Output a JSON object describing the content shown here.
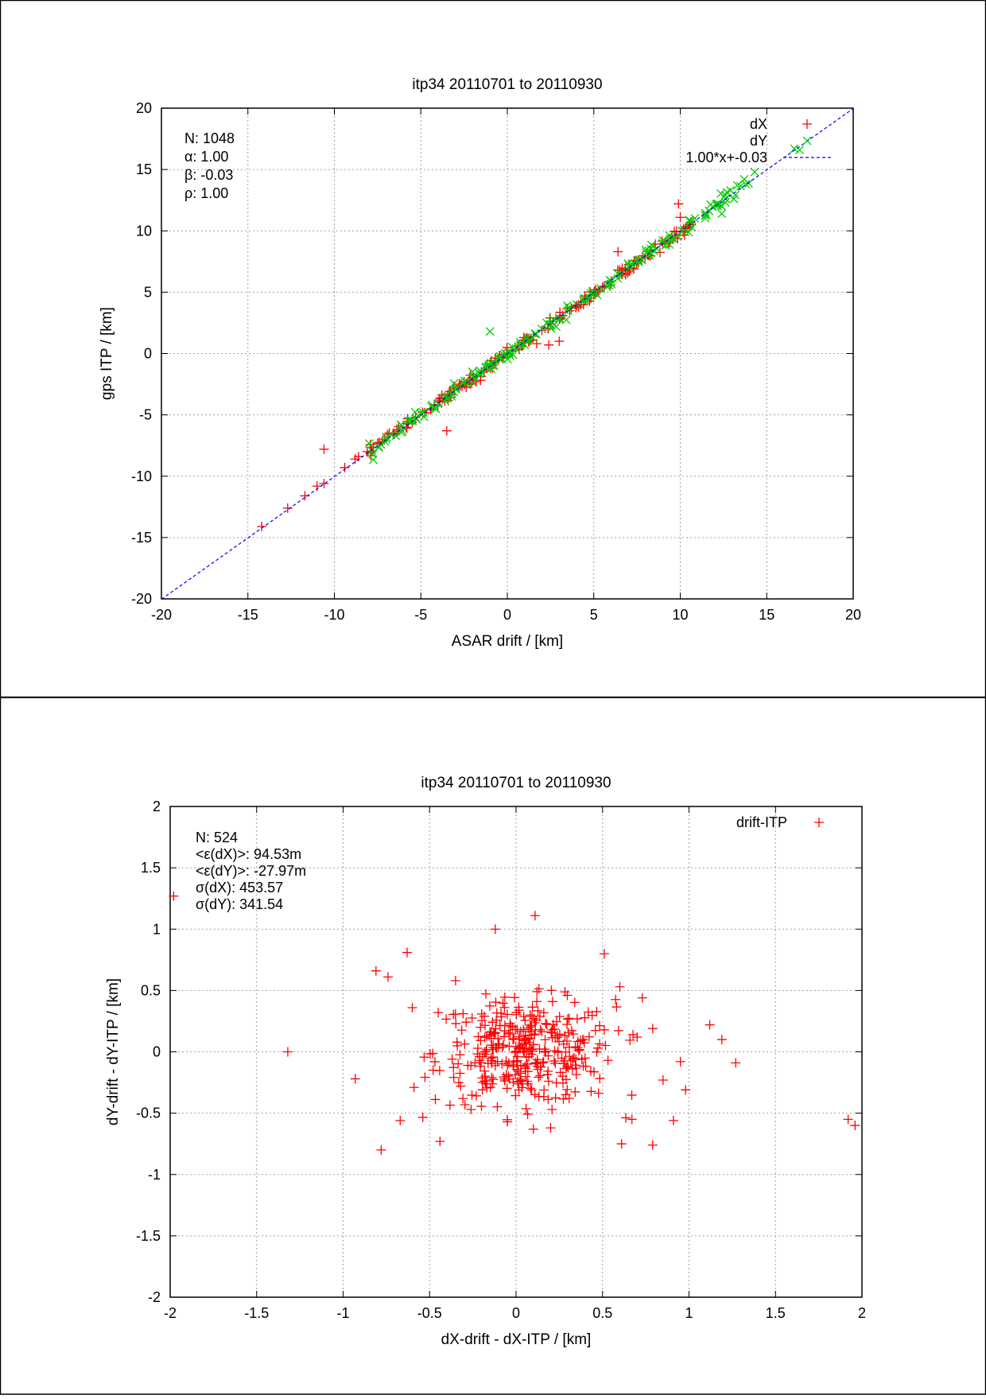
{
  "chart_data": [
    {
      "type": "scatter",
      "title": "itp34 20110701 to 20110930",
      "xlabel": "ASAR drift / [km]",
      "ylabel": "gps ITP / [km]",
      "xlim": [
        -20,
        20
      ],
      "ylim": [
        -20,
        20
      ],
      "xticks": [
        -20,
        -15,
        -10,
        -5,
        0,
        5,
        10,
        15,
        20
      ],
      "yticks": [
        -20,
        -15,
        -10,
        -5,
        0,
        5,
        10,
        15,
        20
      ],
      "grid": true,
      "legend_position": "top-right",
      "stats": [
        "N: 1048",
        "α: 1.00",
        "β: -0.03",
        "ρ: 1.00"
      ],
      "series": [
        {
          "name": "dX",
          "color": "#ff0000",
          "marker": "plus",
          "points": [
            [
              -14.2,
              -14.1
            ],
            [
              -12.7,
              -12.6
            ],
            [
              -11.7,
              -11.6
            ],
            [
              -11.0,
              -10.8
            ],
            [
              -10.6,
              -10.6
            ],
            [
              -10.6,
              -7.8
            ],
            [
              -9.4,
              -9.3
            ],
            [
              -8.8,
              -8.6
            ],
            [
              -8.6,
              -8.4
            ],
            [
              -8.1,
              -8.0
            ],
            [
              -7.9,
              -8.1
            ],
            [
              -7.5,
              -7.3
            ],
            [
              -7.1,
              -7.0
            ],
            [
              -6.6,
              -6.5
            ],
            [
              -6.3,
              -6.2
            ],
            [
              -5.8,
              -5.7
            ],
            [
              -5.3,
              -5.2
            ],
            [
              -4.9,
              -4.8
            ],
            [
              -4.4,
              -4.5
            ],
            [
              -3.9,
              -3.8
            ],
            [
              -3.5,
              -6.3
            ],
            [
              -3.3,
              -3.3
            ],
            [
              -2.8,
              -2.7
            ],
            [
              -2.5,
              -2.3
            ],
            [
              -2.0,
              -2.0
            ],
            [
              -1.8,
              -2.3
            ],
            [
              -1.5,
              -1.5
            ],
            [
              -1.2,
              -1.2
            ],
            [
              -1.0,
              -0.9
            ],
            [
              -0.7,
              -0.7
            ],
            [
              -0.3,
              -0.3
            ],
            [
              0.0,
              0.0
            ],
            [
              0.3,
              0.2
            ],
            [
              0.6,
              0.6
            ],
            [
              0.9,
              0.9
            ],
            [
              1.2,
              1.2
            ],
            [
              1.5,
              1.4
            ],
            [
              1.7,
              0.8
            ],
            [
              2.0,
              1.9
            ],
            [
              2.4,
              0.7
            ],
            [
              2.5,
              2.4
            ],
            [
              3.0,
              1.0
            ],
            [
              3.2,
              3.1
            ],
            [
              3.6,
              3.5
            ],
            [
              4.0,
              3.9
            ],
            [
              4.5,
              4.4
            ],
            [
              5.0,
              4.9
            ],
            [
              5.5,
              5.4
            ],
            [
              6.0,
              5.9
            ],
            [
              6.4,
              8.3
            ],
            [
              6.6,
              6.5
            ],
            [
              7.1,
              6.9
            ],
            [
              7.6,
              7.5
            ],
            [
              8.2,
              8.0
            ],
            [
              9.1,
              9.0
            ],
            [
              9.7,
              9.6
            ],
            [
              9.9,
              12.2
            ],
            [
              10.0,
              11.1
            ],
            [
              10.3,
              10.2
            ],
            [
              10.6,
              10.7
            ]
          ]
        },
        {
          "name": "dY",
          "color": "#00cc00",
          "marker": "cross",
          "points": [
            [
              -7.0,
              -7.0
            ],
            [
              -6.2,
              -6.1
            ],
            [
              -5.6,
              -5.5
            ],
            [
              -5.0,
              -4.9
            ],
            [
              -4.4,
              -4.3
            ],
            [
              -3.6,
              -3.5
            ],
            [
              -3.0,
              -2.9
            ],
            [
              -2.5,
              -2.4
            ],
            [
              -2.0,
              -1.9
            ],
            [
              -1.6,
              -1.6
            ],
            [
              -1.2,
              -1.1
            ],
            [
              -1.0,
              1.8
            ],
            [
              -0.8,
              -0.7
            ],
            [
              -0.5,
              -0.4
            ],
            [
              -0.2,
              -0.1
            ],
            [
              0.1,
              0.1
            ],
            [
              0.5,
              0.4
            ],
            [
              0.8,
              0.8
            ],
            [
              1.2,
              1.1
            ],
            [
              1.6,
              1.6
            ],
            [
              2.0,
              2.0
            ],
            [
              2.5,
              2.4
            ],
            [
              3.0,
              2.9
            ],
            [
              3.5,
              3.5
            ],
            [
              4.0,
              4.0
            ],
            [
              4.4,
              4.3
            ],
            [
              4.9,
              4.8
            ],
            [
              5.4,
              5.3
            ],
            [
              6.0,
              5.9
            ],
            [
              6.6,
              6.5
            ],
            [
              7.1,
              7.0
            ],
            [
              7.6,
              7.6
            ],
            [
              8.3,
              8.2
            ],
            [
              9.0,
              9.0
            ],
            [
              9.5,
              9.4
            ],
            [
              10.1,
              10.0
            ],
            [
              12.4,
              12.0
            ],
            [
              12.6,
              12.9
            ],
            [
              12.9,
              13.3
            ],
            [
              13.3,
              13.7
            ],
            [
              13.7,
              14.2
            ],
            [
              14.3,
              14.8
            ],
            [
              16.6,
              16.7
            ],
            [
              16.9,
              16.6
            ],
            [
              12.4,
              11.4
            ],
            [
              13.1,
              12.6
            ],
            [
              -4.0,
              -4.1
            ],
            [
              1.0,
              0.7
            ]
          ]
        },
        {
          "name": "1.00*x+-0.03",
          "color": "#0000ff",
          "type": "line",
          "dash": "dashed",
          "slope": 1.0,
          "intercept": -0.03
        }
      ]
    },
    {
      "type": "scatter",
      "title": "itp34 20110701 to 20110930",
      "xlabel": "dX-drift - dX-ITP / [km]",
      "ylabel": "dY-drift - dY-ITP / [km]",
      "xlim": [
        -2,
        2
      ],
      "ylim": [
        -2,
        2
      ],
      "xticks": [
        -2,
        -1.5,
        -1,
        -0.5,
        0,
        0.5,
        1,
        1.5,
        2
      ],
      "yticks": [
        -2,
        -1.5,
        -1,
        -0.5,
        0,
        0.5,
        1,
        1.5,
        2
      ],
      "grid": true,
      "legend_position": "top-right",
      "stats": [
        "N: 524",
        "<ε(dX)>:  94.53m",
        "<ε(dY)>: -27.97m",
        "σ(dX):  453.57",
        "σ(dY):  341.54"
      ],
      "series": [
        {
          "name": "drift-ITP",
          "color": "#ff0000",
          "marker": "plus",
          "points": [
            [
              -1.98,
              1.27
            ],
            [
              -1.32,
              0.0
            ],
            [
              -0.93,
              -0.22
            ],
            [
              -0.81,
              0.66
            ],
            [
              -0.78,
              -0.8
            ],
            [
              -0.74,
              0.61
            ],
            [
              -0.67,
              -0.56
            ],
            [
              -0.63,
              0.81
            ],
            [
              -0.6,
              0.36
            ],
            [
              -0.59,
              -0.29
            ],
            [
              -0.45,
              0.32
            ],
            [
              -0.44,
              -0.73
            ],
            [
              -0.35,
              0.58
            ],
            [
              -0.12,
              1.0
            ],
            [
              0.11,
              1.11
            ],
            [
              0.51,
              0.8
            ],
            [
              0.6,
              0.53
            ],
            [
              0.73,
              0.44
            ],
            [
              0.79,
              -0.76
            ],
            [
              0.61,
              -0.75
            ],
            [
              0.67,
              -0.55
            ],
            [
              0.85,
              -0.23
            ],
            [
              0.91,
              -0.56
            ],
            [
              0.95,
              -0.08
            ],
            [
              0.98,
              -0.31
            ],
            [
              1.12,
              0.22
            ],
            [
              1.19,
              0.1
            ],
            [
              1.27,
              -0.09
            ],
            [
              1.92,
              -0.55
            ],
            [
              1.96,
              -0.6
            ],
            [
              0.79,
              0.19
            ],
            [
              0.7,
              0.12
            ],
            [
              0.2,
              -0.62
            ],
            [
              0.1,
              -0.63
            ],
            [
              -0.05,
              -0.57
            ],
            [
              -0.26,
              -0.47
            ]
          ],
          "cluster": {
            "center": [
              0.05,
              0.0
            ],
            "spread": [
              0.26,
              0.21
            ],
            "count": 360
          }
        }
      ]
    }
  ]
}
